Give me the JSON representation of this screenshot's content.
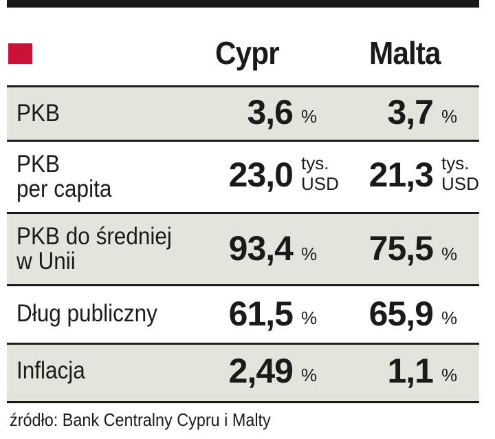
{
  "chart_data": {
    "type": "table",
    "columns": [
      "Cypr",
      "Malta"
    ],
    "rows": [
      {
        "label": "PKB",
        "values": [
          "3,6",
          "3,7"
        ],
        "unit": "%"
      },
      {
        "label": "PKB per capita",
        "label_lines": [
          "PKB",
          "per capita"
        ],
        "values": [
          "23,0",
          "21,3"
        ],
        "unit_lines": [
          "tys.",
          "USD"
        ]
      },
      {
        "label": "PKB do średniej w Unii",
        "label_lines": [
          "PKB do średniej",
          "w Unii"
        ],
        "values": [
          "93,4",
          "75,5"
        ],
        "unit": "%"
      },
      {
        "label": "Dług publiczny",
        "values": [
          "61,5",
          "65,9"
        ],
        "unit": "%"
      },
      {
        "label": "Inflacja",
        "values": [
          "2,49",
          "1,1"
        ],
        "unit": "%"
      }
    ],
    "source": "źródło: Bank Centralny Cypru i Malty"
  },
  "colors": {
    "accent": "#cc1138",
    "shade": "#e4e4dc",
    "rule": "#1a1a1a"
  }
}
